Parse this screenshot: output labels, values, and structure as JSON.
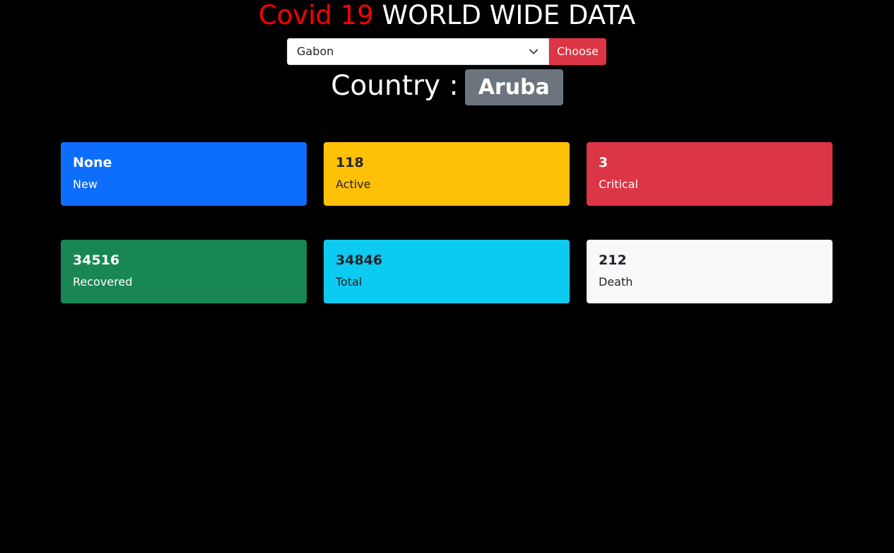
{
  "header": {
    "title_accent": "Covid 19",
    "title_rest": "WORLD WIDE DATA"
  },
  "form": {
    "selected_country": "Gabon",
    "choose_label": "Choose"
  },
  "country": {
    "label": "Country :",
    "name": "Aruba"
  },
  "stats": {
    "new": {
      "value": "None",
      "label": "New"
    },
    "active": {
      "value": "118",
      "label": "Active"
    },
    "critical": {
      "value": "3",
      "label": "Critical"
    },
    "recovered": {
      "value": "34516",
      "label": "Recovered"
    },
    "total": {
      "value": "34846",
      "label": "Total"
    },
    "death": {
      "value": "212",
      "label": "Death"
    }
  },
  "colors": {
    "accent_red": "#ff0000",
    "button_red": "#dc3545",
    "badge_gray": "#6c757d",
    "new_blue": "#0d6efd",
    "active_yellow": "#ffc107",
    "critical_red": "#dc3545",
    "recovered_green": "#198754",
    "total_cyan": "#0dcaf0",
    "death_light": "#f8f9fa"
  },
  "icons": {
    "select_chevron": "chevron-down-icon"
  }
}
